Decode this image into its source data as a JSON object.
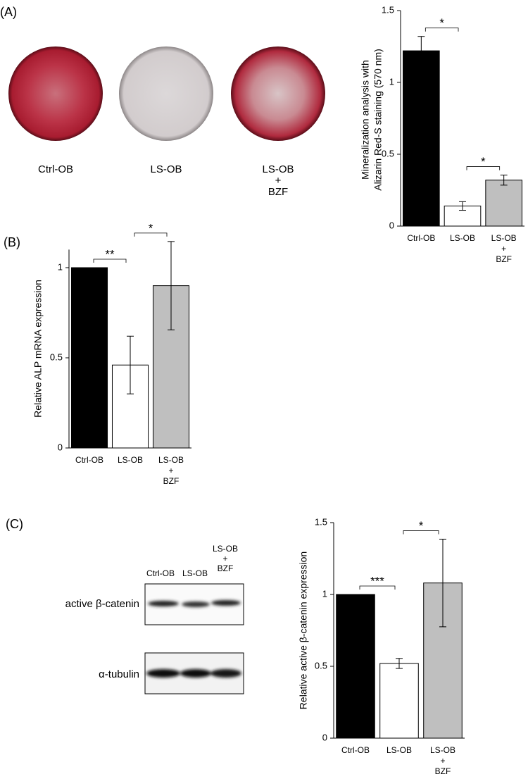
{
  "panels": [
    "(A)",
    "(B)",
    "(C)"
  ],
  "wells": {
    "labels": [
      "Ctrl-OB",
      "LS-OB",
      [
        "LS-OB",
        "+",
        "BZF"
      ]
    ]
  },
  "blot": {
    "columns": [
      "Ctrl-OB",
      "LS-OB",
      [
        "LS-OB",
        "+",
        "BZF"
      ]
    ],
    "rows": [
      "active β-catenin",
      "α-tubulin"
    ]
  },
  "chart_data": [
    {
      "type": "bar",
      "ylabel": [
        "Mineralization analysis with",
        "Alizarin Red-S staining (570 nm)"
      ],
      "categories": [
        "Ctrl-OB",
        "LS-OB",
        [
          "LS-OB",
          "+",
          "BZF"
        ]
      ],
      "values": [
        1.22,
        0.14,
        0.32
      ],
      "errors": [
        0.1,
        0.03,
        0.035
      ],
      "colors": [
        "#000000",
        "#ffffff",
        "#bfbfbf"
      ],
      "ylim": [
        0,
        1.5
      ],
      "yticks": [
        0,
        0.5,
        1,
        1.5
      ],
      "annotations": [
        "*",
        "*"
      ]
    },
    {
      "type": "bar",
      "ylabel": [
        "Relative ALP mRNA expression"
      ],
      "categories": [
        "Ctrl-OB",
        "LS-OB",
        [
          "LS-OB",
          "+",
          "BZF"
        ]
      ],
      "values": [
        1,
        0.46,
        0.9
      ],
      "errors": [
        0,
        0.16,
        0.245
      ],
      "colors": [
        "#000000",
        "#ffffff",
        "#bfbfbf"
      ],
      "ylim": [
        0,
        1.1
      ],
      "yticks": [
        0,
        0.5,
        1
      ],
      "annotations": [
        "**",
        "*"
      ]
    },
    {
      "type": "bar",
      "ylabel": [
        "Relative active β-catenin expression"
      ],
      "categories": [
        "Ctrl-OB",
        "LS-OB",
        [
          "LS-OB",
          "+",
          "BZF"
        ]
      ],
      "values": [
        1,
        0.52,
        1.08
      ],
      "errors": [
        0,
        0.035,
        0.305
      ],
      "colors": [
        "#000000",
        "#ffffff",
        "#bfbfbf"
      ],
      "ylim": [
        0,
        1.5
      ],
      "yticks": [
        0,
        0.5,
        1,
        1.5
      ],
      "annotations": [
        "***",
        "*"
      ]
    }
  ]
}
